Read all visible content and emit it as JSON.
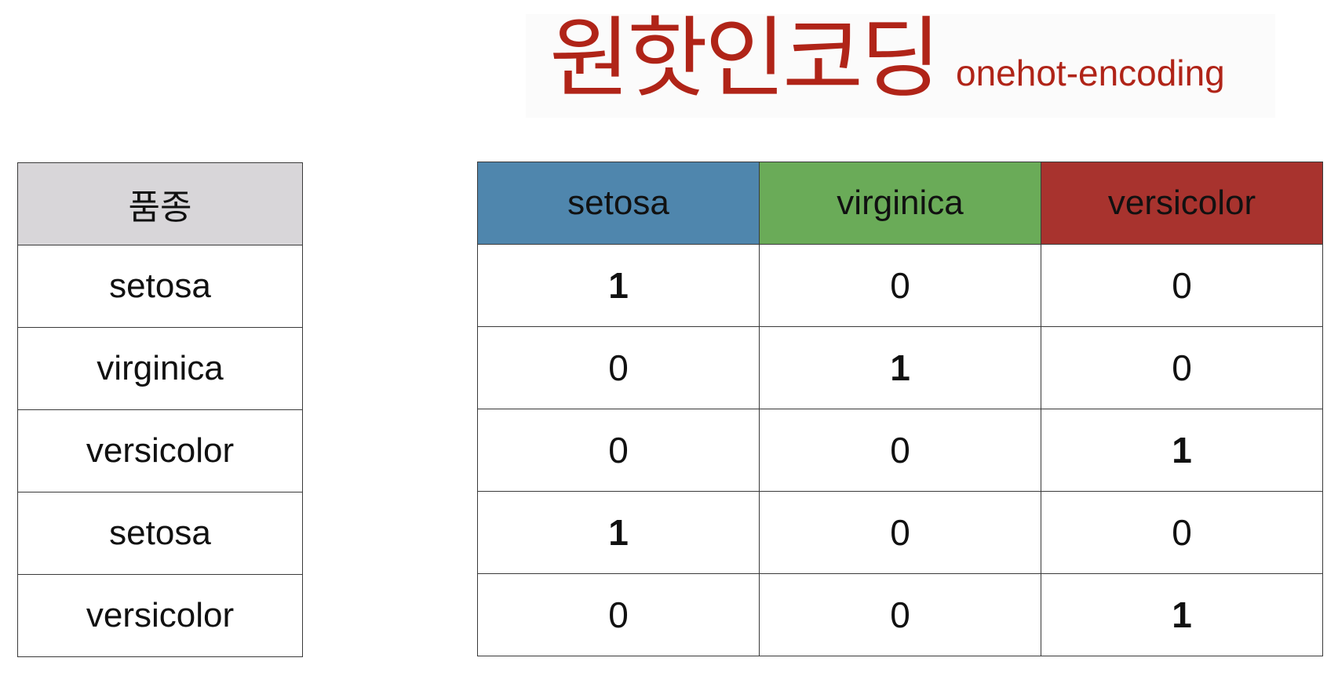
{
  "title": {
    "main": "원핫인코딩",
    "sub": "onehot-encoding",
    "color": "#b02418"
  },
  "left_table": {
    "header": "품종",
    "header_bg": "#d8d6d9",
    "rows": [
      "setosa",
      "virginica",
      "versicolor",
      "setosa",
      "versicolor"
    ]
  },
  "right_table": {
    "columns": [
      {
        "label": "setosa",
        "color": "#4f86ad"
      },
      {
        "label": "virginica",
        "color": "#6aab58"
      },
      {
        "label": "versicolor",
        "color": "#a8332e"
      }
    ],
    "rows": [
      [
        "1",
        "0",
        "0"
      ],
      [
        "0",
        "1",
        "0"
      ],
      [
        "0",
        "0",
        "1"
      ],
      [
        "1",
        "0",
        "0"
      ],
      [
        "0",
        "0",
        "1"
      ]
    ]
  }
}
